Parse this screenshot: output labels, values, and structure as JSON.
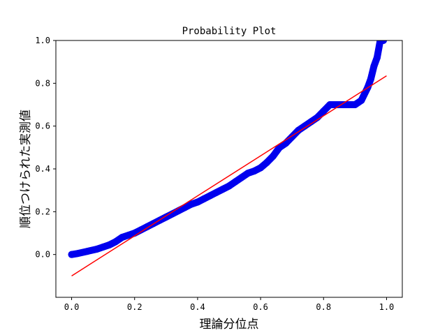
{
  "chart_data": {
    "type": "scatter",
    "title": "Probability Plot",
    "xlabel": "理論分位点",
    "ylabel": "順位つけられた実測値",
    "xlim": [
      -0.05,
      1.05
    ],
    "ylim": [
      -0.2,
      1.0
    ],
    "xticks": [
      0.0,
      0.2,
      0.4,
      0.6,
      0.8,
      1.0
    ],
    "xtick_labels": [
      "0.0",
      "0.2",
      "0.4",
      "0.6",
      "0.8",
      "1.0"
    ],
    "yticks": [
      0.0,
      0.2,
      0.4,
      0.6,
      0.8,
      1.0
    ],
    "ytick_labels": [
      "0.0",
      "0.2",
      "0.4",
      "0.6",
      "0.8",
      "1.0"
    ],
    "grid": false,
    "series": [
      {
        "kind": "points",
        "color": "#0000ee",
        "x": [
          0.0,
          0.02,
          0.05,
          0.08,
          0.1,
          0.12,
          0.14,
          0.16,
          0.18,
          0.2,
          0.22,
          0.24,
          0.26,
          0.28,
          0.3,
          0.32,
          0.34,
          0.36,
          0.38,
          0.4,
          0.42,
          0.44,
          0.46,
          0.48,
          0.5,
          0.52,
          0.54,
          0.56,
          0.58,
          0.6,
          0.62,
          0.64,
          0.66,
          0.68,
          0.7,
          0.72,
          0.74,
          0.76,
          0.78,
          0.8,
          0.82,
          0.84,
          0.86,
          0.88,
          0.9,
          0.92,
          0.94,
          0.95,
          0.96,
          0.97,
          0.98,
          0.99
        ],
        "y": [
          0.0,
          0.005,
          0.015,
          0.025,
          0.035,
          0.045,
          0.06,
          0.08,
          0.09,
          0.1,
          0.115,
          0.13,
          0.145,
          0.16,
          0.175,
          0.19,
          0.205,
          0.22,
          0.235,
          0.245,
          0.26,
          0.275,
          0.29,
          0.305,
          0.32,
          0.34,
          0.36,
          0.38,
          0.39,
          0.405,
          0.43,
          0.46,
          0.5,
          0.52,
          0.55,
          0.58,
          0.6,
          0.62,
          0.64,
          0.67,
          0.7,
          0.7,
          0.7,
          0.7,
          0.7,
          0.72,
          0.78,
          0.82,
          0.88,
          0.92,
          1.0,
          1.0
        ]
      },
      {
        "kind": "fit-line",
        "color": "#ff0000",
        "x": [
          0.0,
          1.0
        ],
        "y": [
          -0.1,
          0.835
        ]
      }
    ]
  }
}
